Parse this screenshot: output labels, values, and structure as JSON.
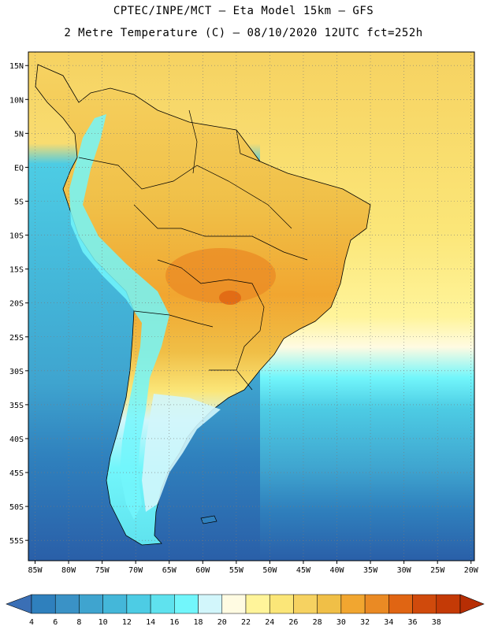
{
  "header": {
    "line1": "CPTEC/INPE/MCT –  Eta Model 15km – GFS",
    "line2": "2 Metre Temperature (C) – 08/10/2020 12UTC fct=252h"
  },
  "axes": {
    "lat_labels": [
      "15N",
      "10N",
      "5N",
      "EQ",
      "5S",
      "10S",
      "15S",
      "20S",
      "25S",
      "30S",
      "35S",
      "40S",
      "45S",
      "50S",
      "55S"
    ],
    "lat_values": [
      15,
      10,
      5,
      0,
      -5,
      -10,
      -15,
      -20,
      -25,
      -30,
      -35,
      -40,
      -45,
      -50,
      -55
    ],
    "lon_labels": [
      "85W",
      "80W",
      "75W",
      "70W",
      "65W",
      "60W",
      "55W",
      "50W",
      "45W",
      "40W",
      "35W",
      "30W",
      "25W",
      "20W"
    ],
    "lon_values": [
      -85,
      -80,
      -75,
      -70,
      -65,
      -60,
      -55,
      -50,
      -45,
      -40,
      -35,
      -30,
      -25,
      -20
    ],
    "lon_range": [
      -86,
      -19.5
    ],
    "lat_range": [
      -58,
      17
    ]
  },
  "colorbar": {
    "labels": [
      "4",
      "6",
      "8",
      "10",
      "12",
      "14",
      "16",
      "18",
      "20",
      "22",
      "24",
      "26",
      "28",
      "30",
      "32",
      "34",
      "36",
      "38"
    ],
    "colors": [
      "#3a6fb5",
      "#2f80bd",
      "#3a92c6",
      "#3fa4cf",
      "#44b7d9",
      "#4dcce4",
      "#5fe2ee",
      "#72f6fb",
      "#d2f6fb",
      "#fffbe2",
      "#fff49a",
      "#fbe678",
      "#f6d261",
      "#f0bf47",
      "#f1a630",
      "#ea8a24",
      "#e06513",
      "#d04a0c",
      "#c43a06",
      "#b72e04"
    ]
  }
}
